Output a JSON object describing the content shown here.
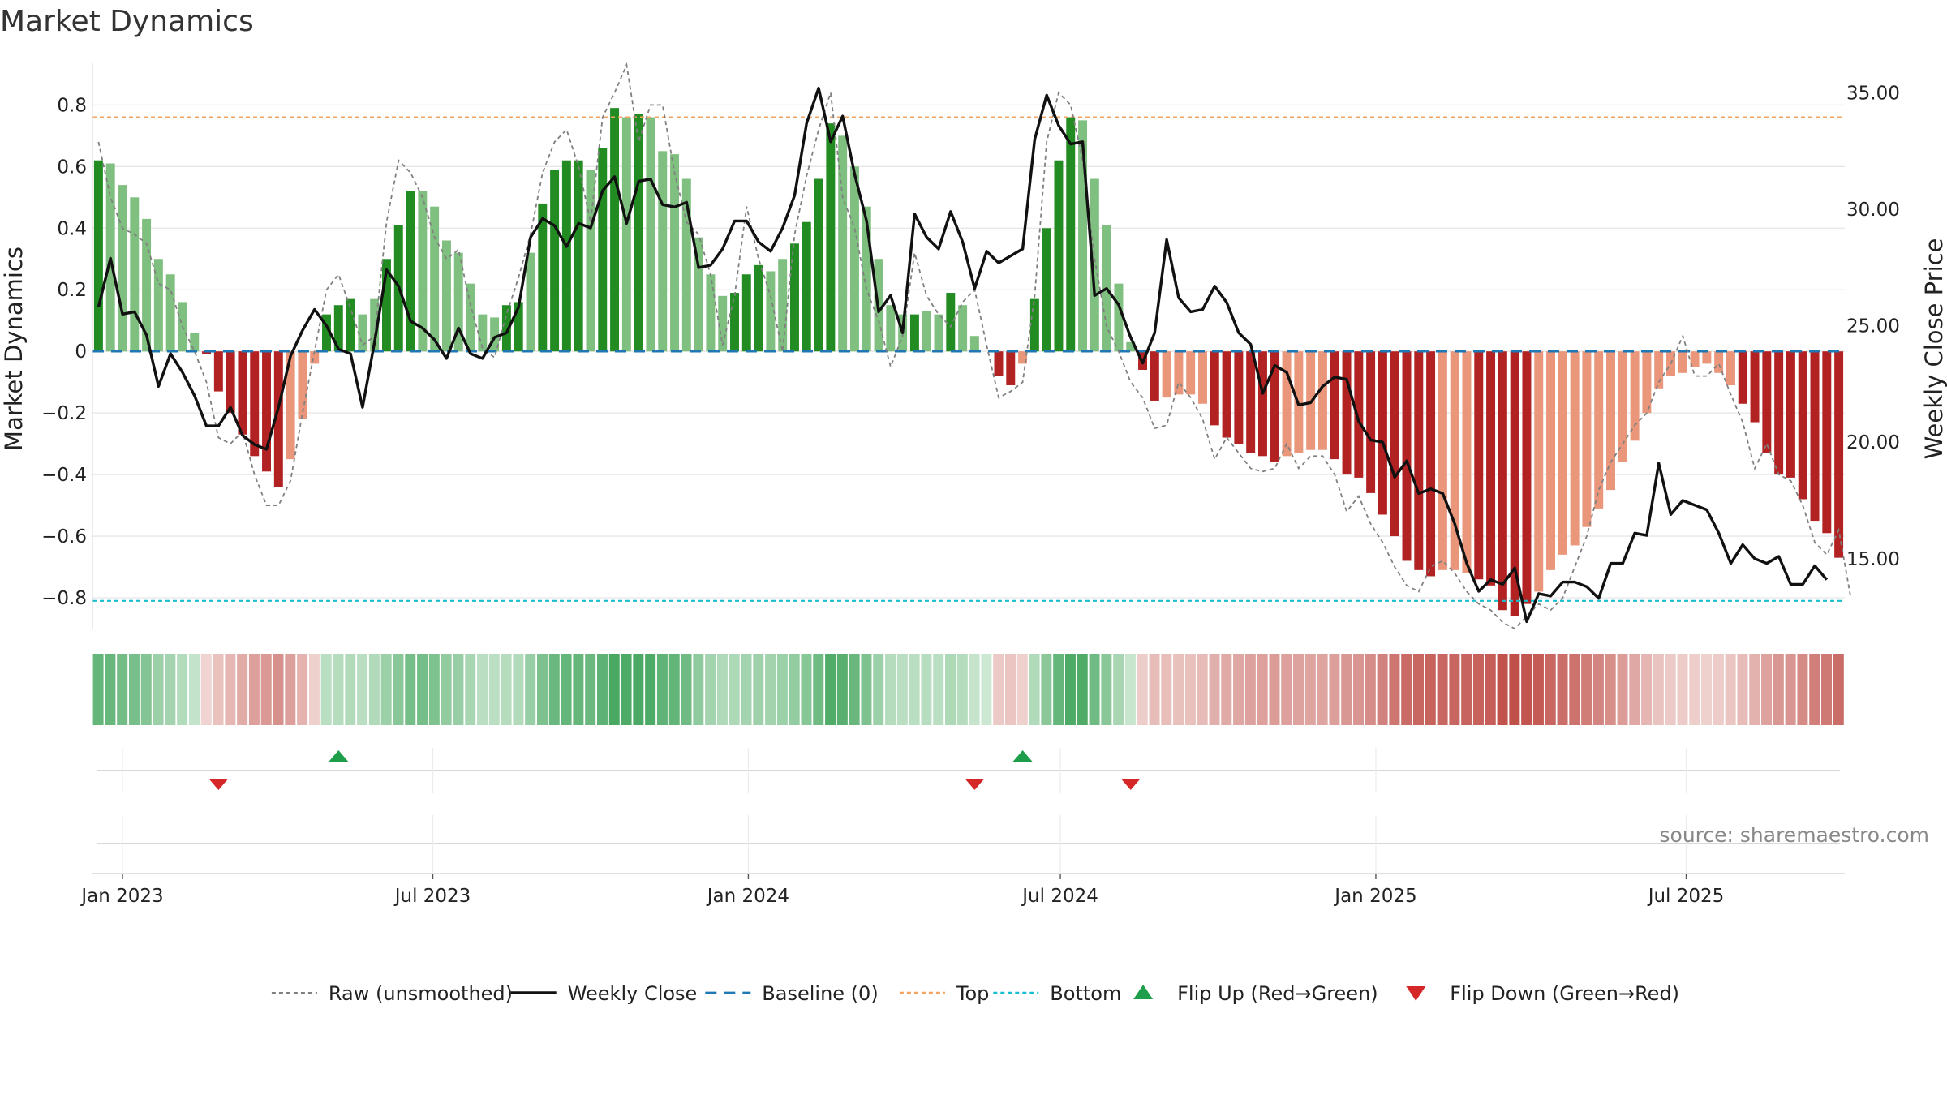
{
  "chart_data": {
    "type": "bar",
    "title": "Market Dynamics",
    "ylabel_left": "Market Dynamics",
    "ylabel_right": "Weekly Close Price",
    "left_yticks": [
      "0.8",
      "0.6",
      "0.4",
      "0.2",
      "0",
      "−0.2",
      "−0.4",
      "−0.6",
      "−0.8"
    ],
    "left_ytick_values": [
      0.8,
      0.6,
      0.4,
      0.2,
      0,
      -0.2,
      -0.4,
      -0.6,
      -0.8
    ],
    "right_yticks": [
      "35.00",
      "30.00",
      "25.00",
      "20.00",
      "15.00"
    ],
    "right_ytick_values": [
      35,
      30,
      25,
      20,
      15
    ],
    "ylim_left": [
      -0.9,
      0.93
    ],
    "ylim_right": [
      12.0,
      36.2
    ],
    "x_ticks": [
      "Jan 2023",
      "Jul 2023",
      "Jan 2024",
      "Jul 2024",
      "Jan 2025",
      "Jul 2025"
    ],
    "x_tick_dates": [
      "2023-01-01",
      "2023-07-01",
      "2024-01-01",
      "2024-07-01",
      "2025-01-01",
      "2025-07-01"
    ],
    "first_week": "2022-12-18",
    "week_step_days": 7,
    "top_line": 0.76,
    "bottom_line": -0.81,
    "baseline": 0,
    "bar_values": [
      0.62,
      0.61,
      0.54,
      0.5,
      0.43,
      0.3,
      0.25,
      0.16,
      0.06,
      -0.01,
      -0.13,
      -0.2,
      -0.27,
      -0.34,
      -0.39,
      -0.44,
      -0.35,
      -0.22,
      -0.04,
      0.12,
      0.15,
      0.17,
      0.12,
      0.17,
      0.3,
      0.41,
      0.52,
      0.52,
      0.47,
      0.36,
      0.32,
      0.22,
      0.12,
      0.11,
      0.15,
      0.16,
      0.32,
      0.48,
      0.59,
      0.62,
      0.62,
      0.59,
      0.66,
      0.79,
      0.76,
      0.77,
      0.76,
      0.65,
      0.64,
      0.56,
      0.37,
      0.25,
      0.18,
      0.19,
      0.25,
      0.28,
      0.26,
      0.3,
      0.35,
      0.42,
      0.56,
      0.74,
      0.7,
      0.6,
      0.47,
      0.3,
      0.15,
      0.12,
      0.12,
      0.13,
      0.12,
      0.19,
      0.15,
      0.05,
      0.0,
      -0.08,
      -0.11,
      -0.04,
      0.17,
      0.4,
      0.62,
      0.76,
      0.75,
      0.56,
      0.41,
      0.22,
      0.03,
      -0.06,
      -0.16,
      -0.15,
      -0.14,
      -0.14,
      -0.17,
      -0.24,
      -0.28,
      -0.3,
      -0.33,
      -0.34,
      -0.36,
      -0.34,
      -0.33,
      -0.32,
      -0.32,
      -0.35,
      -0.4,
      -0.41,
      -0.46,
      -0.53,
      -0.6,
      -0.68,
      -0.71,
      -0.73,
      -0.71,
      -0.71,
      -0.72,
      -0.74,
      -0.76,
      -0.84,
      -0.86,
      -0.82,
      -0.78,
      -0.71,
      -0.66,
      -0.63,
      -0.57,
      -0.51,
      -0.45,
      -0.36,
      -0.29,
      -0.2,
      -0.12,
      -0.08,
      -0.07,
      -0.05,
      -0.04,
      -0.07,
      -0.11,
      -0.17,
      -0.23,
      -0.33,
      -0.4,
      -0.41,
      -0.48,
      -0.55,
      -0.59,
      -0.67
    ],
    "bar_shades": [
      "dark",
      "light",
      "light",
      "light",
      "light",
      "light",
      "light",
      "light",
      "light",
      "dark",
      "dark",
      "dark",
      "dark",
      "dark",
      "dark",
      "dark",
      "light",
      "light",
      "light",
      "dark",
      "dark",
      "dark",
      "light",
      "light",
      "dark",
      "dark",
      "dark",
      "light",
      "light",
      "light",
      "light",
      "light",
      "light",
      "light",
      "dark",
      "dark",
      "light",
      "dark",
      "dark",
      "dark",
      "dark",
      "light",
      "dark",
      "dark",
      "light",
      "dark",
      "light",
      "light",
      "light",
      "light",
      "light",
      "light",
      "light",
      "dark",
      "dark",
      "dark",
      "light",
      "light",
      "dark",
      "dark",
      "dark",
      "dark",
      "light",
      "light",
      "light",
      "light",
      "light",
      "light",
      "dark",
      "light",
      "light",
      "dark",
      "light",
      "light",
      "light",
      "dark",
      "dark",
      "light",
      "dark",
      "dark",
      "dark",
      "dark",
      "light",
      "light",
      "light",
      "light",
      "light",
      "dark",
      "dark",
      "light",
      "light",
      "light",
      "light",
      "dark",
      "dark",
      "dark",
      "dark",
      "dark",
      "dark",
      "light",
      "light",
      "light",
      "light",
      "dark",
      "dark",
      "dark",
      "dark",
      "dark",
      "dark",
      "dark",
      "dark",
      "dark",
      "light",
      "light",
      "light",
      "dark",
      "dark",
      "dark",
      "dark",
      "dark",
      "light",
      "light",
      "light",
      "light",
      "light",
      "light",
      "light",
      "light",
      "light",
      "light",
      "light",
      "light",
      "light",
      "light",
      "light",
      "light",
      "light",
      "dark",
      "dark",
      "dark",
      "dark",
      "dark",
      "dark",
      "dark",
      "dark",
      "dark",
      "dark",
      "dark"
    ],
    "weekly_close": [
      25.8,
      27.9,
      25.5,
      25.6,
      24.6,
      22.4,
      23.8,
      23.0,
      22.0,
      20.7,
      20.7,
      21.5,
      20.3,
      19.9,
      19.7,
      21.5,
      23.7,
      24.8,
      25.7,
      25.0,
      24.0,
      23.8,
      21.5,
      24.3,
      27.4,
      26.7,
      25.2,
      24.9,
      24.4,
      23.6,
      24.9,
      23.8,
      23.6,
      24.5,
      24.7,
      25.8,
      28.8,
      29.6,
      29.3,
      28.4,
      29.4,
      29.2,
      30.8,
      31.4,
      29.4,
      31.2,
      31.3,
      30.2,
      30.1,
      30.3,
      27.5,
      27.6,
      28.3,
      29.5,
      29.5,
      28.6,
      28.2,
      29.2,
      30.6,
      33.7,
      35.2,
      32.9,
      34.0,
      31.5,
      29.5,
      25.6,
      26.3,
      24.7,
      29.8,
      28.8,
      28.3,
      29.9,
      28.6,
      26.6,
      28.2,
      27.7,
      28.0,
      28.3,
      33.0,
      34.9,
      33.6,
      32.8,
      32.9,
      26.3,
      26.6,
      25.9,
      24.5,
      23.4,
      24.7,
      28.7,
      26.2,
      25.6,
      25.7,
      26.7,
      26.0,
      24.7,
      24.2,
      22.1,
      23.3,
      23.0,
      21.6,
      21.7,
      22.4,
      22.8,
      22.7,
      20.9,
      20.1,
      20.0,
      18.5,
      19.2,
      17.8,
      18.0,
      17.8,
      16.5,
      14.8,
      13.6,
      14.1,
      13.9,
      14.6,
      12.3,
      13.5,
      13.4,
      14.0,
      14.0,
      13.8,
      13.3,
      14.8,
      14.8,
      16.1,
      16.0,
      19.1,
      16.9,
      17.5,
      17.3,
      17.1,
      16.1,
      14.8,
      15.6,
      15.0,
      14.8,
      15.1,
      13.9,
      13.9,
      14.7,
      14.1
    ],
    "raw_series": [
      0.68,
      0.5,
      0.4,
      0.38,
      0.35,
      0.22,
      0.2,
      0.08,
      0.0,
      -0.1,
      -0.28,
      -0.3,
      -0.26,
      -0.4,
      -0.5,
      -0.5,
      -0.42,
      -0.2,
      0.0,
      0.2,
      0.25,
      0.14,
      0.02,
      0.05,
      0.42,
      0.62,
      0.58,
      0.5,
      0.37,
      0.3,
      0.33,
      0.15,
      0.01,
      -0.02,
      0.12,
      0.24,
      0.38,
      0.58,
      0.68,
      0.72,
      0.6,
      0.42,
      0.76,
      0.84,
      0.93,
      0.68,
      0.8,
      0.8,
      0.58,
      0.42,
      0.38,
      0.25,
      0.02,
      0.18,
      0.47,
      0.3,
      0.18,
      0.0,
      0.38,
      0.57,
      0.72,
      0.84,
      0.5,
      0.4,
      0.2,
      0.1,
      -0.05,
      0.05,
      0.32,
      0.18,
      0.12,
      0.08,
      0.16,
      0.2,
      0.02,
      -0.15,
      -0.13,
      -0.1,
      0.18,
      0.68,
      0.84,
      0.8,
      0.62,
      0.3,
      0.08,
      0.0,
      -0.1,
      -0.15,
      -0.25,
      -0.24,
      -0.1,
      -0.15,
      -0.22,
      -0.35,
      -0.28,
      -0.33,
      -0.38,
      -0.39,
      -0.38,
      -0.3,
      -0.38,
      -0.34,
      -0.34,
      -0.4,
      -0.52,
      -0.47,
      -0.56,
      -0.62,
      -0.7,
      -0.76,
      -0.78,
      -0.7,
      -0.68,
      -0.72,
      -0.78,
      -0.82,
      -0.84,
      -0.88,
      -0.9,
      -0.86,
      -0.82,
      -0.84,
      -0.8,
      -0.7,
      -0.6,
      -0.45,
      -0.36,
      -0.3,
      -0.24,
      -0.2,
      -0.1,
      -0.04,
      0.05,
      -0.08,
      -0.08,
      -0.04,
      -0.14,
      -0.23,
      -0.38,
      -0.3,
      -0.4,
      -0.42,
      -0.5,
      -0.62,
      -0.66,
      -0.58,
      -0.8
    ],
    "strip_values": [
      0.62,
      0.61,
      0.54,
      0.5,
      0.43,
      0.3,
      0.25,
      0.16,
      0.06,
      -0.01,
      -0.13,
      -0.2,
      -0.27,
      -0.34,
      -0.39,
      -0.44,
      -0.35,
      -0.22,
      -0.04,
      0.12,
      0.15,
      0.17,
      0.12,
      0.17,
      0.3,
      0.41,
      0.52,
      0.52,
      0.47,
      0.36,
      0.32,
      0.22,
      0.12,
      0.11,
      0.15,
      0.16,
      0.32,
      0.48,
      0.59,
      0.62,
      0.62,
      0.59,
      0.66,
      0.79,
      0.76,
      0.77,
      0.76,
      0.65,
      0.64,
      0.56,
      0.37,
      0.25,
      0.18,
      0.19,
      0.25,
      0.28,
      0.26,
      0.3,
      0.35,
      0.42,
      0.56,
      0.74,
      0.7,
      0.6,
      0.47,
      0.3,
      0.15,
      0.12,
      0.12,
      0.13,
      0.12,
      0.19,
      0.15,
      0.05,
      0.0,
      -0.08,
      -0.11,
      -0.04,
      0.17,
      0.4,
      0.62,
      0.76,
      0.75,
      0.56,
      0.41,
      0.22,
      0.03,
      -0.06,
      -0.16,
      -0.15,
      -0.14,
      -0.14,
      -0.17,
      -0.24,
      -0.28,
      -0.3,
      -0.33,
      -0.34,
      -0.36,
      -0.34,
      -0.33,
      -0.32,
      -0.32,
      -0.35,
      -0.4,
      -0.41,
      -0.46,
      -0.53,
      -0.6,
      -0.68,
      -0.71,
      -0.73,
      -0.71,
      -0.71,
      -0.72,
      -0.74,
      -0.76,
      -0.84,
      -0.86,
      -0.82,
      -0.78,
      -0.71,
      -0.66,
      -0.63,
      -0.57,
      -0.51,
      -0.45,
      -0.36,
      -0.29,
      -0.2,
      -0.12,
      -0.08,
      -0.07,
      -0.05,
      -0.04,
      -0.07,
      -0.11,
      -0.17,
      -0.23,
      -0.33,
      -0.4,
      -0.41,
      -0.48,
      -0.55,
      -0.59,
      -0.67
    ],
    "flip_up_dates": [
      "2023-05-07",
      "2024-06-09"
    ],
    "flip_down_dates": [
      "2023-02-26",
      "2024-05-12",
      "2024-08-11"
    ],
    "source_text": "source: sharemaestro.com",
    "legend": [
      {
        "label": "Raw (unsmoothed)",
        "kind": "raw"
      },
      {
        "label": "Weekly Close",
        "kind": "close"
      },
      {
        "label": "Baseline (0)",
        "kind": "baseline"
      },
      {
        "label": "Top",
        "kind": "top"
      },
      {
        "label": "Bottom",
        "kind": "bottom"
      },
      {
        "label": "Flip Up (Red→Green)",
        "kind": "flipup"
      },
      {
        "label": "Flip Down (Green→Red)",
        "kind": "flipdown"
      }
    ],
    "colors": {
      "green_dark": "#228b22",
      "green_light": "#7fbf7f",
      "red_dark": "#b22222",
      "red_light": "#e9967a",
      "raw": "#808080",
      "close": "#111111",
      "baseline": "#1f77b4",
      "top": "#f4a460",
      "bottom": "#17becf",
      "flip_up": "#1e9e4a",
      "flip_down": "#d62728",
      "grid": "#e6e6e6"
    }
  }
}
